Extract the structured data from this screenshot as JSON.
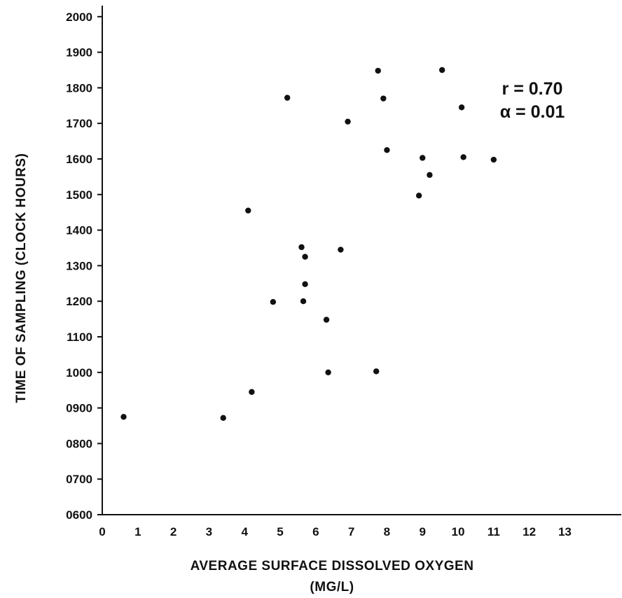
{
  "chart_data": {
    "type": "scatter",
    "xlabel_lines": [
      "AVERAGE SURFACE DISSOLVED OXYGEN",
      "(MG/L)"
    ],
    "ylabel": "TIME OF SAMPLING (CLOCK HOURS)",
    "xlim": [
      0,
      14.2
    ],
    "ylim": [
      600,
      2050
    ],
    "x_ticks": [
      0,
      1,
      2,
      3,
      4,
      5,
      6,
      7,
      8,
      9,
      10,
      11,
      12,
      13
    ],
    "y_ticks": [
      600,
      700,
      800,
      900,
      1000,
      1100,
      1200,
      1300,
      1400,
      1500,
      1600,
      1700,
      1800,
      1900,
      2000
    ],
    "y_tick_labels": [
      "0600",
      "0700",
      "0800",
      "0900",
      "1000",
      "1100",
      "1200",
      "1300",
      "1400",
      "1500",
      "1600",
      "1700",
      "1800",
      "1900",
      "2000"
    ],
    "points": [
      {
        "x": 0.6,
        "y": 875
      },
      {
        "x": 3.4,
        "y": 872
      },
      {
        "x": 4.2,
        "y": 945
      },
      {
        "x": 4.1,
        "y": 1455
      },
      {
        "x": 4.8,
        "y": 1198
      },
      {
        "x": 5.2,
        "y": 1772
      },
      {
        "x": 5.6,
        "y": 1352
      },
      {
        "x": 5.7,
        "y": 1325
      },
      {
        "x": 5.7,
        "y": 1248
      },
      {
        "x": 5.65,
        "y": 1200
      },
      {
        "x": 6.3,
        "y": 1148
      },
      {
        "x": 6.35,
        "y": 1000
      },
      {
        "x": 6.7,
        "y": 1345
      },
      {
        "x": 6.9,
        "y": 1705
      },
      {
        "x": 7.7,
        "y": 1003
      },
      {
        "x": 7.75,
        "y": 1848
      },
      {
        "x": 7.9,
        "y": 1770
      },
      {
        "x": 8.0,
        "y": 1625
      },
      {
        "x": 8.9,
        "y": 1497
      },
      {
        "x": 9.0,
        "y": 1603
      },
      {
        "x": 9.2,
        "y": 1555
      },
      {
        "x": 9.55,
        "y": 1850
      },
      {
        "x": 10.1,
        "y": 1745
      },
      {
        "x": 10.15,
        "y": 1605
      },
      {
        "x": 11.0,
        "y": 1598
      }
    ],
    "annotations": [
      "r = 0.70",
      "α = 0.01"
    ],
    "legend": "none",
    "grid": false
  }
}
